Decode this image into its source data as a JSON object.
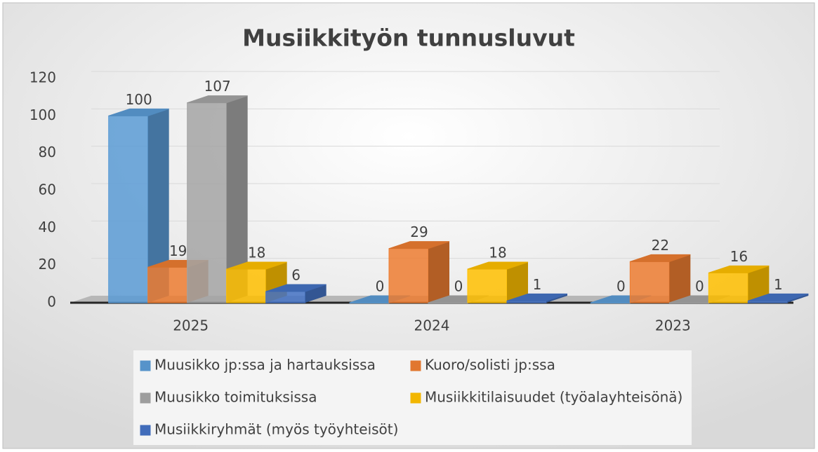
{
  "chart_data": {
    "type": "bar3d",
    "title": "Musiikkityön tunnusluvut",
    "categories": [
      "2025",
      "2024",
      "2023"
    ],
    "series": [
      {
        "name": "Muusikko jp:ssa ja hartauksissa",
        "color": "#5b9bd5",
        "values": [
          100,
          0,
          0
        ]
      },
      {
        "name": "Kuoro/solisti jp:ssa",
        "color": "#ed7d31",
        "values": [
          19,
          29,
          22
        ]
      },
      {
        "name": "Muusikko toimituksissa",
        "color": "#a5a5a5",
        "values": [
          107,
          0,
          0
        ]
      },
      {
        "name": "Musiikkitilaisuudet (työalayhteisönä)",
        "color": "#ffc000",
        "values": [
          18,
          18,
          16
        ]
      },
      {
        "name": "Musiikkiryhmät (myös työyhteisöt)",
        "color": "#4472c4",
        "values": [
          6,
          1,
          1
        ]
      }
    ],
    "ylim": [
      0,
      120
    ],
    "yticks": [
      0,
      20,
      40,
      60,
      80,
      100,
      120
    ],
    "grid": true,
    "legend": "bottom"
  }
}
